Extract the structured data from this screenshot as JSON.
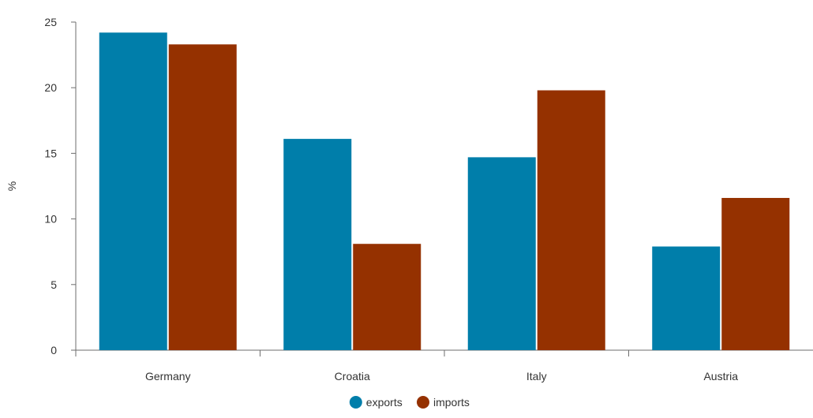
{
  "chart_data": {
    "type": "bar",
    "title": "",
    "xlabel": "",
    "ylabel": "%",
    "ylim": [
      0,
      25
    ],
    "yticks": [
      0,
      5,
      10,
      15,
      20,
      25
    ],
    "grid": false,
    "legend_position": "bottom-center",
    "categories": [
      "Germany",
      "Croatia",
      "Italy",
      "Austria"
    ],
    "series": [
      {
        "name": "exports",
        "color": "#007eaa",
        "values": [
          24.2,
          16.1,
          14.7,
          7.9
        ]
      },
      {
        "name": "imports",
        "color": "#953100",
        "values": [
          23.3,
          8.1,
          19.8,
          11.6
        ]
      }
    ]
  }
}
